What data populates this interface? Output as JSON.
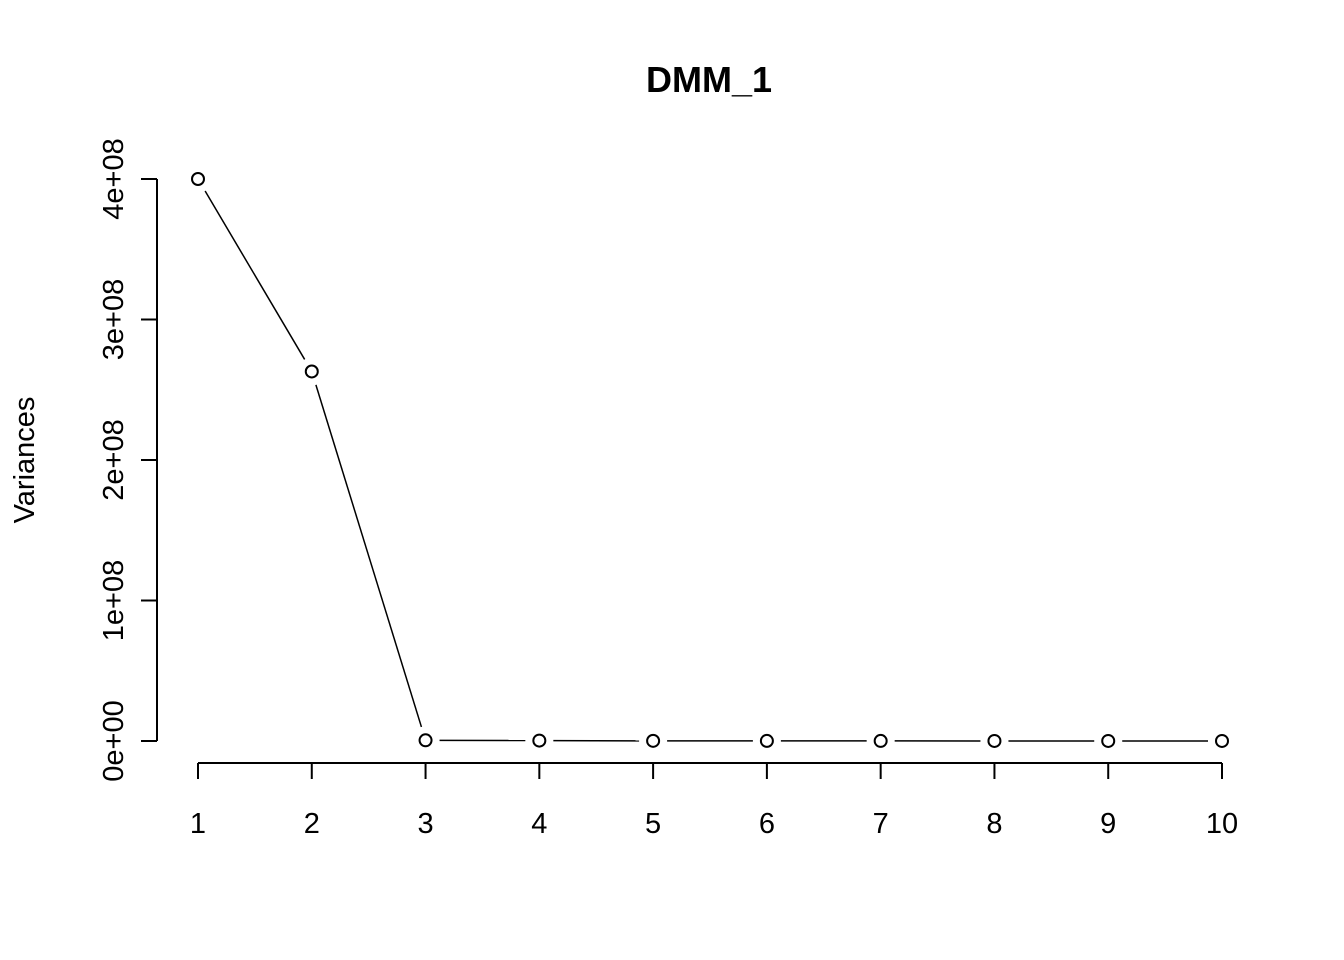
{
  "chart_data": {
    "type": "line",
    "title": "DMM_1",
    "xlabel": "",
    "ylabel": "Variances",
    "x": [
      1,
      2,
      3,
      4,
      5,
      6,
      7,
      8,
      9,
      10
    ],
    "values": [
      400000000,
      263000000,
      500000,
      300000,
      100000,
      80000,
      60000,
      40000,
      30000,
      20000
    ],
    "xlim": [
      1,
      10
    ],
    "ylim": [
      0,
      400000000
    ],
    "x_ticks": [
      "1",
      "2",
      "3",
      "4",
      "5",
      "6",
      "7",
      "8",
      "9",
      "10"
    ],
    "y_ticks": [
      {
        "value": 0,
        "label": "0e+00"
      },
      {
        "value": 100000000,
        "label": "1e+08"
      },
      {
        "value": 200000000,
        "label": "2e+08"
      },
      {
        "value": 300000000,
        "label": "3e+08"
      },
      {
        "value": 400000000,
        "label": "4e+08"
      }
    ],
    "marker": "open-circle",
    "line_color": "#000000",
    "grid": false,
    "legend": "none"
  }
}
